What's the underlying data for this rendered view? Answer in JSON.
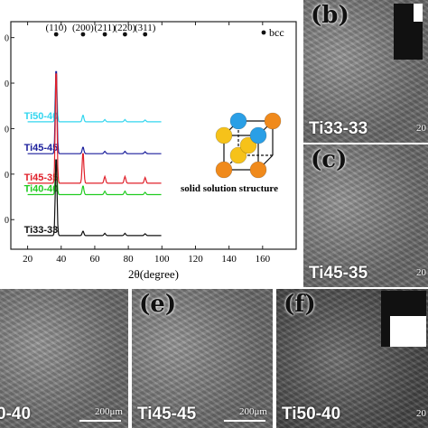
{
  "chart_data": {
    "type": "line",
    "xlabel": "2θ(degree)",
    "ylim_note": "",
    "xlim": [
      10,
      180
    ],
    "x_ticks": [
      20,
      40,
      60,
      80,
      100,
      120,
      140,
      160
    ],
    "y_tick_fragments": [
      "0",
      "0",
      "0",
      "0",
      "0"
    ],
    "legend_symbol_label": "bcc",
    "peak_labels": [
      {
        "label": "(110)",
        "x": 37
      },
      {
        "label": "(200)",
        "x": 53
      },
      {
        "label": "(211)",
        "x": 66
      },
      {
        "label": "(220)",
        "x": 78
      },
      {
        "label": "(311)",
        "x": 90
      }
    ],
    "series": [
      {
        "name": "Ti50-40",
        "color": "#33d6ef",
        "offset": 5.6,
        "peaks": [
          [
            37,
            2.2
          ],
          [
            53,
            0.3
          ],
          [
            66,
            0.1
          ],
          [
            78,
            0.1
          ],
          [
            90,
            0.08
          ]
        ]
      },
      {
        "name": "Ti45-45",
        "color": "#1b1f9c",
        "offset": 4.2,
        "peaks": [
          [
            37,
            3.9
          ],
          [
            53,
            0.3
          ],
          [
            66,
            0.1
          ],
          [
            78,
            0.1
          ],
          [
            90,
            0.08
          ]
        ]
      },
      {
        "name": "Ti45-35",
        "color": "#e0202a",
        "offset": 2.9,
        "peaks": [
          [
            37,
            5.2
          ],
          [
            53,
            1.4
          ],
          [
            66,
            0.3
          ],
          [
            78,
            0.3
          ],
          [
            90,
            0.25
          ]
        ]
      },
      {
        "name": "Ti40-40",
        "color": "#22cc22",
        "offset": 2.4,
        "peaks": [
          [
            37,
            1.4
          ],
          [
            53,
            0.4
          ],
          [
            66,
            0.15
          ],
          [
            78,
            0.15
          ],
          [
            90,
            0.1
          ]
        ]
      },
      {
        "name": "Ti33-33",
        "color": "#111111",
        "offset": 0.6,
        "peaks": [
          [
            37,
            3.6
          ],
          [
            53,
            0.2
          ],
          [
            66,
            0.1
          ],
          [
            78,
            0.1
          ],
          [
            90,
            0.08
          ]
        ]
      }
    ],
    "inset_caption": "solid solution structure"
  },
  "panels": {
    "b": {
      "letter": "(b)",
      "label": "Ti33-33",
      "scale": "20"
    },
    "c": {
      "letter": "(c)",
      "label": "Ti45-35",
      "scale": "20"
    },
    "d": {
      "label": "0-40",
      "scale": "200μm"
    },
    "e": {
      "letter": "(e)",
      "label": "Ti45-45",
      "scale": "200μm"
    },
    "f": {
      "letter": "(f)",
      "label": "Ti50-40",
      "scale": "20"
    }
  },
  "colors": {
    "atom_blue": "#2a9fe6",
    "atom_orange": "#f08a1c",
    "atom_yellow": "#f6c21a"
  }
}
